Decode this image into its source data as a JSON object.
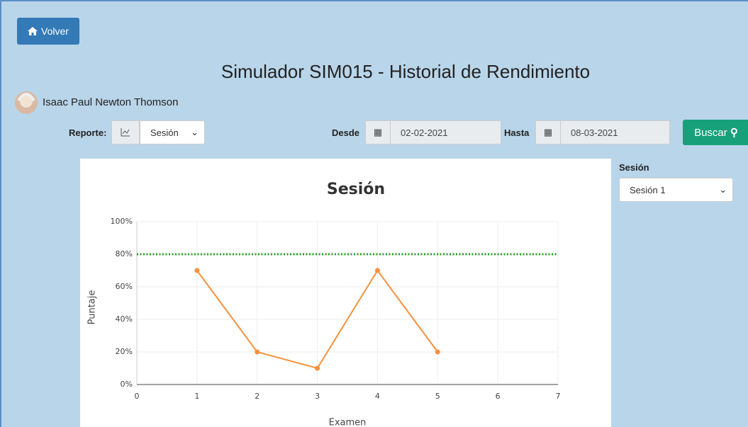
{
  "header": {
    "back_button": "Volver",
    "title": "Simulador SIM015 - Historial de Rendimiento",
    "user": "Isaac Paul Newton Thomson"
  },
  "filters": {
    "report_label": "Reporte:",
    "report_value": "Sesión",
    "from_label": "Desde",
    "from_value": "02-02-2021",
    "to_label": "Hasta",
    "to_value": "08-03-2021",
    "search_button": "Buscar"
  },
  "session_panel": {
    "label": "Sesión",
    "value": "Sesión 1"
  },
  "chart_data": {
    "type": "line",
    "title": "Sesión",
    "x_label": "Examen",
    "y_label": "Puntaje",
    "x": [
      1,
      2,
      3,
      4,
      5
    ],
    "values": [
      70,
      20,
      10,
      70,
      20
    ],
    "color": "#f7913d",
    "reference_line": {
      "value": 80,
      "color": "#2ca02c"
    },
    "xlim": [
      0,
      7
    ],
    "xticks": [
      0,
      1,
      2,
      3,
      4,
      5,
      6,
      7
    ],
    "ylim": [
      0,
      100
    ],
    "yticks": [
      {
        "value": 0,
        "label": "0%"
      },
      {
        "value": 20,
        "label": "20%"
      },
      {
        "value": 40,
        "label": "40%"
      },
      {
        "value": 60,
        "label": "60%"
      },
      {
        "value": 80,
        "label": "80%"
      },
      {
        "value": 100,
        "label": "100%"
      }
    ],
    "grid": true
  }
}
